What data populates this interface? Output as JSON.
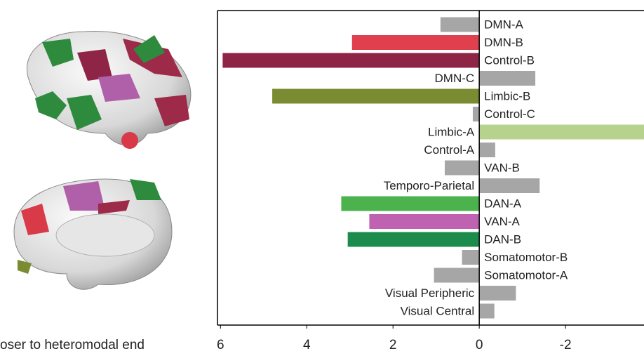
{
  "chart_data": {
    "type": "bar",
    "orientation": "horizontal",
    "xlabel": "oser to heteromodal end",
    "categories": [
      "DMN-A",
      "DMN-B",
      "Control-B",
      "DMN-C",
      "Limbic-B",
      "Control-C",
      "Limbic-A",
      "Control-A",
      "VAN-B",
      "Temporo-Parietal",
      "DAN-A",
      "VAN-A",
      "DAN-B",
      "Somatomotor-B",
      "Somatomotor-A",
      "Visual Peripheric",
      "Visual Central"
    ],
    "values": [
      0.9,
      2.95,
      5.95,
      -1.3,
      4.8,
      0.15,
      -4.0,
      -0.37,
      0.8,
      -1.4,
      3.2,
      2.55,
      3.05,
      0.4,
      1.05,
      -0.85,
      -0.35
    ],
    "colors": [
      "#a6a6a6",
      "#e0404e",
      "#8e2446",
      "#a6a6a6",
      "#7b8b32",
      "#a6a6a6",
      "#b6d28c",
      "#a6a6a6",
      "#a6a6a6",
      "#a6a6a6",
      "#4cb24e",
      "#c062b2",
      "#1c8c4c",
      "#a6a6a6",
      "#a6a6a6",
      "#a6a6a6",
      "#a6a6a6"
    ],
    "xlim": [
      6.07,
      -3.82
    ],
    "xticks": [
      6,
      4,
      2,
      0,
      -2
    ]
  }
}
